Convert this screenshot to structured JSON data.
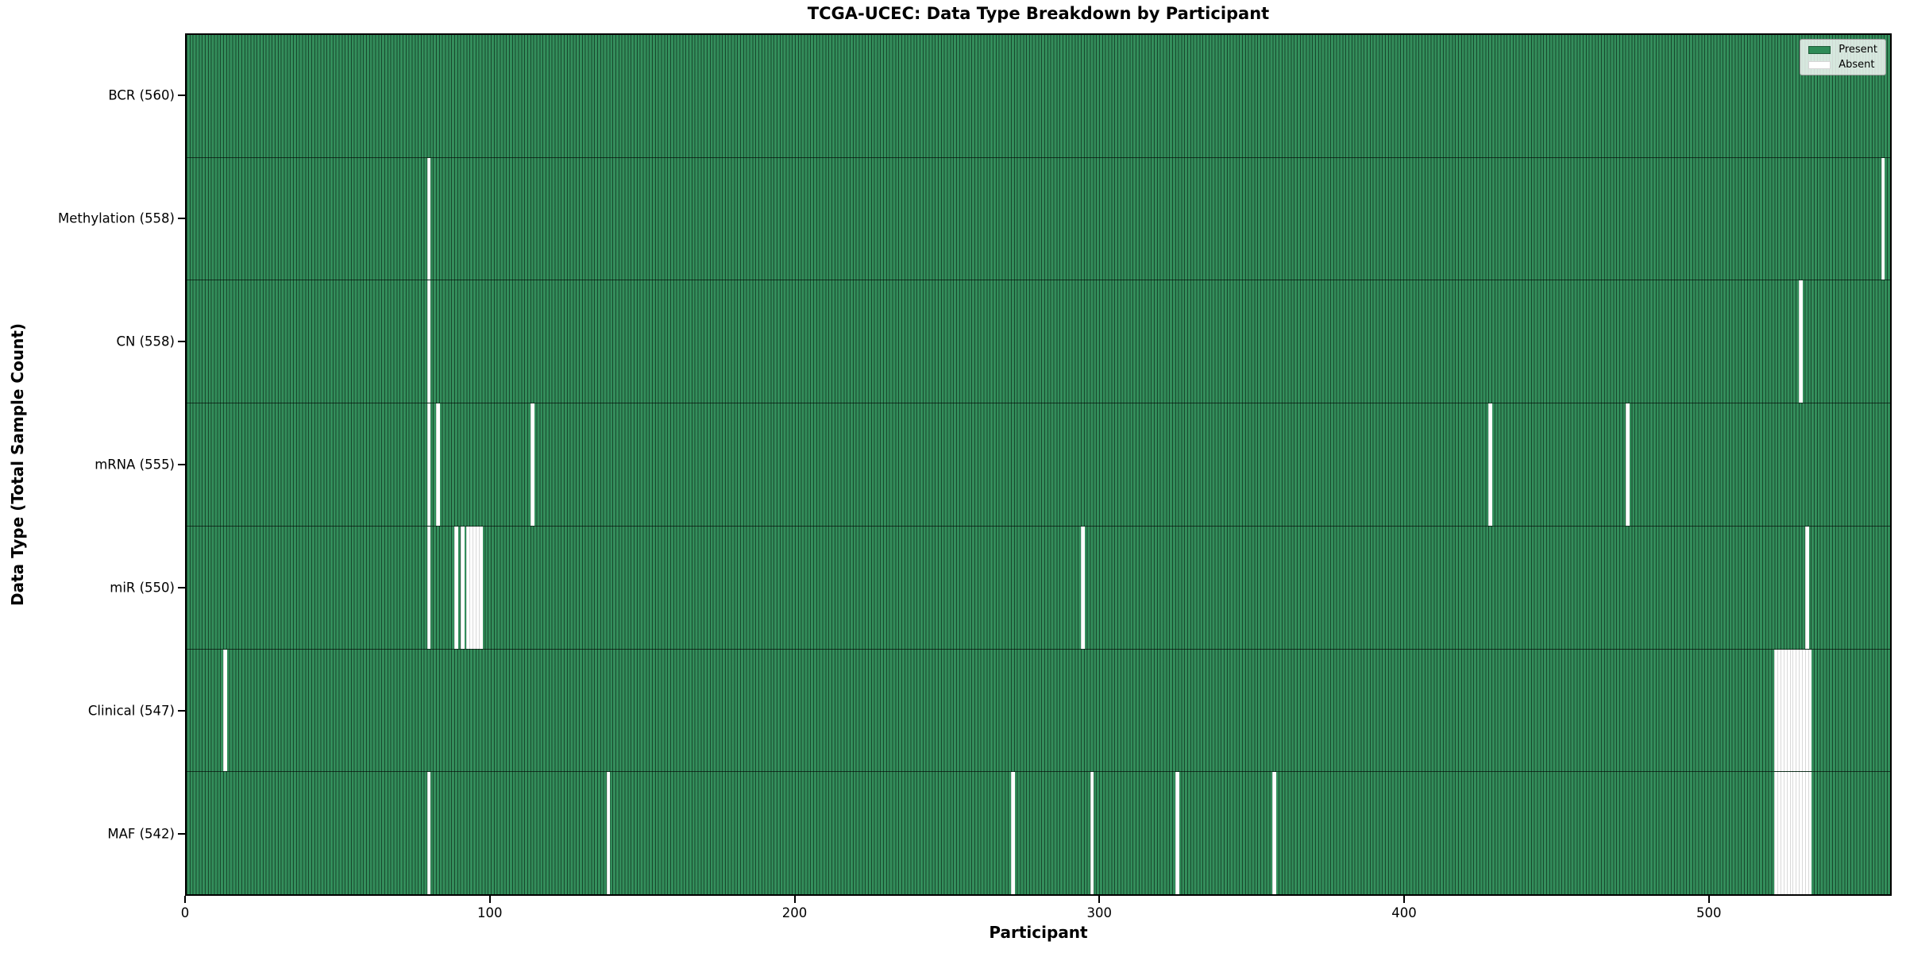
{
  "chart_data": {
    "type": "heatmap",
    "title": "TCGA-UCEC: Data Type Breakdown by Participant",
    "xlabel": "Participant",
    "ylabel": "Data Type (Total Sample Count)",
    "x_ticks": [
      0,
      100,
      200,
      300,
      400,
      500
    ],
    "xlim": [
      0,
      560
    ],
    "n_participants": 560,
    "grid": false,
    "legend": {
      "present": "Present",
      "absent": "Absent",
      "position": "upper right"
    },
    "colors": {
      "present": "#2e8b57",
      "present_edge": "#1d5c38",
      "absent": "#ffffff",
      "absent_edge": "#d8d8d8"
    },
    "rows": [
      {
        "label": "BCR (560)",
        "data_type": "bcr",
        "total": 560,
        "absent_participants": []
      },
      {
        "label": "Methylation (558)",
        "data_type": "methylation",
        "total": 558,
        "absent_participants": [
          79,
          557
        ]
      },
      {
        "label": "CN (558)",
        "data_type": "cn",
        "total": 558,
        "absent_participants": [
          79,
          530
        ]
      },
      {
        "label": "mRNA (555)",
        "data_type": "mrna",
        "total": 555,
        "absent_participants": [
          79,
          82,
          113,
          428,
          473
        ]
      },
      {
        "label": "miR (550)",
        "data_type": "mir",
        "total": 550,
        "absent_participants": [
          79,
          88,
          90,
          92,
          93,
          94,
          95,
          96,
          294,
          532
        ]
      },
      {
        "label": "Clinical (547)",
        "data_type": "clinical",
        "total": 547,
        "absent_participants": [
          12,
          522,
          523,
          524,
          525,
          526,
          527,
          528,
          529,
          530,
          531,
          532,
          533
        ]
      },
      {
        "label": "MAF (542)",
        "data_type": "maf",
        "total": 542,
        "absent_participants": [
          79,
          138,
          271,
          297,
          325,
          357,
          522,
          523,
          524,
          525,
          526,
          527,
          528,
          529,
          530,
          531,
          532,
          533
        ]
      }
    ]
  }
}
